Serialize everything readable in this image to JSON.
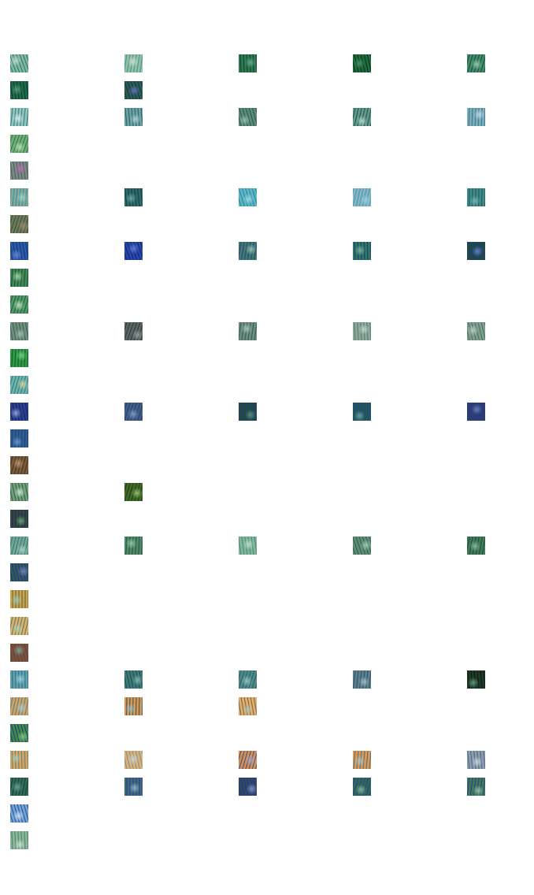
{
  "gallery": {
    "rows": [
      {
        "items": [
          {
            "pal": [
              "#7fb8a4",
              "#2f6e5e",
              "#c9e3d7"
            ]
          },
          {
            "pal": [
              "#8fc1ad",
              "#4a8c76",
              "#d4e8de"
            ]
          },
          {
            "pal": [
              "#2e7a52",
              "#0f3b28",
              "#6fb390"
            ]
          },
          {
            "pal": [
              "#1f6b3f",
              "#0a2d18",
              "#4d9a69"
            ]
          },
          {
            "pal": [
              "#3f8c6a",
              "#1b4a35",
              "#a9d3c0"
            ]
          }
        ]
      },
      {
        "items": [
          {
            "pal": [
              "#1f6a4a",
              "#0d3a28",
              "#58a584"
            ]
          },
          {
            "pal": [
              "#2a5f46",
              "#1a2a6e",
              "#6a74c8"
            ]
          }
        ]
      },
      {
        "items": [
          {
            "pal": [
              "#8fc7c3",
              "#3c6f6a",
              "#e2f0ee"
            ]
          },
          {
            "pal": [
              "#6aa5a8",
              "#2a5457",
              "#b8d9da"
            ]
          },
          {
            "pal": [
              "#5a8c7d",
              "#2b4f45",
              "#9ec6b8"
            ]
          },
          {
            "pal": [
              "#5f9a8c",
              "#244d43",
              "#c5e1d9"
            ]
          },
          {
            "pal": [
              "#7ab0bf",
              "#3b6b78",
              "#c7e0e8"
            ]
          }
        ]
      },
      {
        "items": [
          {
            "pal": [
              "#6fb07a",
              "#2f6e3c",
              "#c6e4c8"
            ]
          }
        ]
      },
      {
        "items": [
          {
            "pal": [
              "#7a8a86",
              "#4b5a56",
              "#c06bbd"
            ]
          }
        ]
      },
      {
        "items": [
          {
            "pal": [
              "#4aa3a2",
              "#e5a07a",
              "#9fd7d4"
            ]
          },
          {
            "pal": [
              "#2f6a6a",
              "#143a3a",
              "#6fb1ad"
            ]
          },
          {
            "pal": [
              "#5ab7c8",
              "#2f7f91",
              "#a8dfe7"
            ]
          },
          {
            "pal": [
              "#5aaab7",
              "#c7b2d8",
              "#9fd2da"
            ]
          },
          {
            "pal": [
              "#3f8a8a",
              "#215556",
              "#7fbdbb"
            ]
          }
        ]
      },
      {
        "items": [
          {
            "pal": [
              "#6a7a5a",
              "#3d4a34",
              "#a98a7a"
            ]
          }
        ]
      },
      {
        "items": [
          {
            "pal": [
              "#2a5aa8",
              "#18346e",
              "#6f8fe0"
            ]
          },
          {
            "pal": [
              "#2747b0",
              "#13245e",
              "#6a86e0"
            ]
          },
          {
            "pal": [
              "#3f7a6a",
              "#2a3a8a",
              "#9fd0c0"
            ]
          },
          {
            "pal": [
              "#2f7a5a",
              "#1c2f8f",
              "#7fbfa0"
            ]
          },
          {
            "pal": [
              "#1e4a3a",
              "#263aa0",
              "#6a8ae0"
            ]
          }
        ]
      },
      {
        "items": [
          {
            "pal": [
              "#3f8a5a",
              "#1e4a2e",
              "#b9e0a8"
            ]
          }
        ]
      },
      {
        "items": [
          {
            "pal": [
              "#4f9a6a",
              "#245a38",
              "#d2ecd0"
            ]
          }
        ]
      },
      {
        "items": [
          {
            "pal": [
              "#6f8f7f",
              "#3f5a4e",
              "#a9c4b8"
            ]
          },
          {
            "pal": [
              "#5a6664",
              "#2c3533",
              "#9aa6a4"
            ]
          },
          {
            "pal": [
              "#6a8f80",
              "#34544a",
              "#b2cfc3"
            ]
          },
          {
            "pal": [
              "#8aa89c",
              "#58786b",
              "#c9dbd3"
            ]
          },
          {
            "pal": [
              "#7e9e90",
              "#4a6a5c",
              "#c0d8cd"
            ]
          }
        ]
      },
      {
        "items": [
          {
            "pal": [
              "#2f9a4a",
              "#14561f",
              "#7fd88a"
            ]
          }
        ]
      },
      {
        "items": [
          {
            "pal": [
              "#6fb0b0",
              "#2f7a72",
              "#e2d89a"
            ]
          }
        ]
      },
      {
        "items": [
          {
            "pal": [
              "#2a3f8f",
              "#16235a",
              "#9fb0e8"
            ]
          },
          {
            "pal": [
              "#3f5f7a",
              "#28378f",
              "#8aa6c8"
            ]
          },
          {
            "pal": [
              "#1f4a3a",
              "#2a3a8a",
              "#5f9a7f"
            ]
          },
          {
            "pal": [
              "#1f5a4a",
              "#2a3ab0",
              "#6ab09a"
            ]
          },
          {
            "pal": [
              "#2a3f6a",
              "#26359a",
              "#6f84c8"
            ]
          }
        ]
      },
      {
        "items": [
          {
            "pal": [
              "#2f5f8a",
              "#1f3a8a",
              "#6f9fd0"
            ]
          }
        ]
      },
      {
        "items": [
          {
            "pal": [
              "#7a5a3a",
              "#3f2f1e",
              "#c0a070"
            ]
          }
        ]
      },
      {
        "items": [
          {
            "pal": [
              "#6fa07a",
              "#2f5a3a",
              "#e0efe0"
            ]
          },
          {
            "pal": [
              "#3f6a2a",
              "#1e3a14",
              "#a9c878"
            ]
          }
        ]
      },
      {
        "items": [
          {
            "pal": [
              "#2f4a3a",
              "#2a1f6a",
              "#6fb07a"
            ]
          }
        ]
      },
      {
        "items": [
          {
            "pal": [
              "#6fa89a",
              "#3f7066",
              "#b7d8cd"
            ]
          },
          {
            "pal": [
              "#4f8a6a",
              "#25503a",
              "#a0d0b0"
            ]
          },
          {
            "pal": [
              "#7fb8a0",
              "#4a8068",
              "#c8e4d6"
            ]
          },
          {
            "pal": [
              "#5f8f78",
              "#2c5a44",
              "#b0d4c0"
            ]
          },
          {
            "pal": [
              "#3f7a5a",
              "#1f4a34",
              "#8fc4a4"
            ]
          }
        ]
      },
      {
        "items": [
          {
            "pal": [
              "#2f5a5a",
              "#2a2f8a",
              "#7f8ad0"
            ]
          }
        ]
      },
      {
        "items": [
          {
            "pal": [
              "#d9a03a",
              "#2f6a7a",
              "#8fd0c8"
            ]
          }
        ]
      },
      {
        "items": [
          {
            "pal": [
              "#e0b06a",
              "#3f7a6a",
              "#a8d8c0"
            ]
          }
        ]
      },
      {
        "items": [
          {
            "pal": [
              "#8a4a3a",
              "#2f5a4a",
              "#7fb0a0"
            ]
          }
        ]
      },
      {
        "items": [
          {
            "pal": [
              "#5fa0b0",
              "#2f6a7a",
              "#a8d4de"
            ]
          },
          {
            "pal": [
              "#3f7a7a",
              "#1f4a4a",
              "#8fbcb8"
            ]
          },
          {
            "pal": [
              "#4f8a8a",
              "#2a5a5a",
              "#a0cccc"
            ]
          },
          {
            "pal": [
              "#5a7f8f",
              "#2f4f5f",
              "#a8c4d0"
            ]
          },
          {
            "pal": [
              "#1f3a2a",
              "#0a1a10",
              "#6fa888"
            ]
          }
        ]
      },
      {
        "items": [
          {
            "pal": [
              "#d8a060",
              "#3f7f90",
              "#9fd0d8"
            ]
          },
          {
            "pal": [
              "#d89a5a",
              "#2f4a4a",
              "#8fc0c8"
            ]
          },
          {
            "pal": [
              "#e0b070",
              "#7a5a3a",
              "#a8c8c0"
            ]
          }
        ]
      },
      {
        "items": [
          {
            "pal": [
              "#3f8a4a",
              "#1f3a7a",
              "#8fd08a"
            ]
          }
        ]
      },
      {
        "items": [
          {
            "pal": [
              "#e0a05a",
              "#3f8a8a",
              "#9fd0c8"
            ]
          },
          {
            "pal": [
              "#e0b070",
              "#6f8fa0",
              "#c8dce0"
            ]
          },
          {
            "pal": [
              "#d89050",
              "#2f4a8a",
              "#a0a8d8"
            ]
          },
          {
            "pal": [
              "#e09a50",
              "#3f6a8a",
              "#9fc4d8"
            ]
          },
          {
            "pal": [
              "#8aa0b0",
              "#4f5f7a",
              "#d0dce4"
            ]
          }
        ]
      },
      {
        "items": [
          {
            "pal": [
              "#2f6a5a",
              "#1a3a30",
              "#6fa894"
            ]
          },
          {
            "pal": [
              "#3f6a7a",
              "#2a3a8a",
              "#9ac4d0"
            ]
          },
          {
            "pal": [
              "#2f4a5a",
              "#2a2f9a",
              "#8a9ad8"
            ]
          },
          {
            "pal": [
              "#2f6a4a",
              "#2a3ab0",
              "#8ac0a0"
            ]
          },
          {
            "pal": [
              "#3f7a5a",
              "#2a3a8a",
              "#9fcab0"
            ]
          }
        ]
      },
      {
        "items": [
          {
            "pal": [
              "#6fa8d0",
              "#2f3fa0",
              "#d8ecf4"
            ]
          }
        ]
      },
      {
        "items": [
          {
            "pal": [
              "#8ab89a",
              "#4f7a5f",
              "#d0e8d8"
            ]
          }
        ]
      }
    ]
  }
}
